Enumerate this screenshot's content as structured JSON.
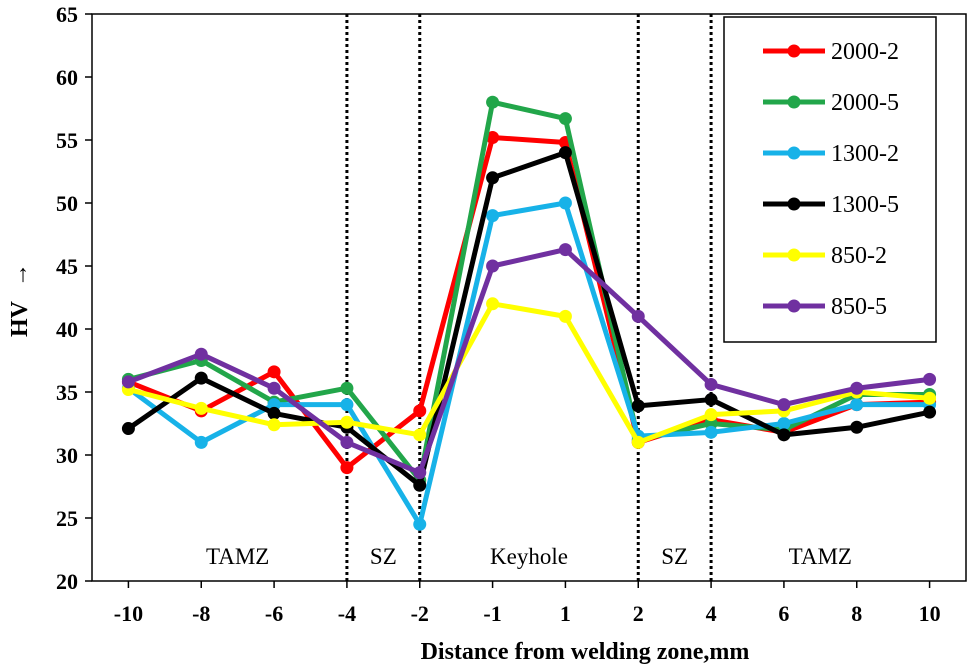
{
  "chart_data": {
    "type": "line",
    "xlabel": "Distance from welding zone,mm",
    "ylabel": "HV",
    "ylabel_arrow": "→",
    "ylim": [
      20,
      65
    ],
    "yticks": [
      20,
      25,
      30,
      35,
      40,
      45,
      50,
      55,
      60,
      65
    ],
    "categories": [
      "-10",
      "-8",
      "-6",
      "-4",
      "-2",
      "-1",
      "1",
      "2",
      "4",
      "6",
      "8",
      "10"
    ],
    "legend_position": "top-right",
    "zone_boundaries": [
      "-4",
      "-2",
      "2",
      "4"
    ],
    "zones": [
      {
        "label": "TAMZ",
        "from": "-10",
        "to": "-4"
      },
      {
        "label": "SZ",
        "from": "-4",
        "to": "-2"
      },
      {
        "label": "Keyhole",
        "from": "-2",
        "to": "2"
      },
      {
        "label": "SZ",
        "from": "2",
        "to": "4"
      },
      {
        "label": "TAMZ",
        "from": "4",
        "to": "10"
      }
    ],
    "series": [
      {
        "name": "2000-2",
        "color": "#ff0000",
        "values": [
          35.8,
          33.5,
          36.6,
          29.0,
          33.5,
          55.2,
          54.8,
          31.0,
          32.8,
          31.8,
          34.0,
          34.2
        ]
      },
      {
        "name": "2000-5",
        "color": "#22a64a",
        "values": [
          36.0,
          37.5,
          34.2,
          35.3,
          28.0,
          58.0,
          56.7,
          31.2,
          32.5,
          32.0,
          34.8,
          34.8
        ]
      },
      {
        "name": "1300-2",
        "color": "#17b2e8",
        "values": [
          35.3,
          31.0,
          34.0,
          34.0,
          24.5,
          49.0,
          50.0,
          31.5,
          31.8,
          32.5,
          34.0,
          34.0
        ]
      },
      {
        "name": "1300-5",
        "color": "#000000",
        "values": [
          32.1,
          36.1,
          33.3,
          32.2,
          27.6,
          52.0,
          54.0,
          33.9,
          34.4,
          31.6,
          32.2,
          33.4
        ]
      },
      {
        "name": "850-2",
        "color": "#ffff00",
        "values": [
          35.2,
          33.7,
          32.4,
          32.6,
          31.6,
          42.0,
          41.0,
          31.0,
          33.2,
          33.5,
          35.0,
          34.5
        ]
      },
      {
        "name": "850-5",
        "color": "#7030a0",
        "values": [
          35.8,
          38.0,
          35.3,
          31.0,
          28.6,
          45.0,
          46.3,
          41.0,
          35.6,
          34.0,
          35.3,
          36.0
        ]
      }
    ]
  }
}
